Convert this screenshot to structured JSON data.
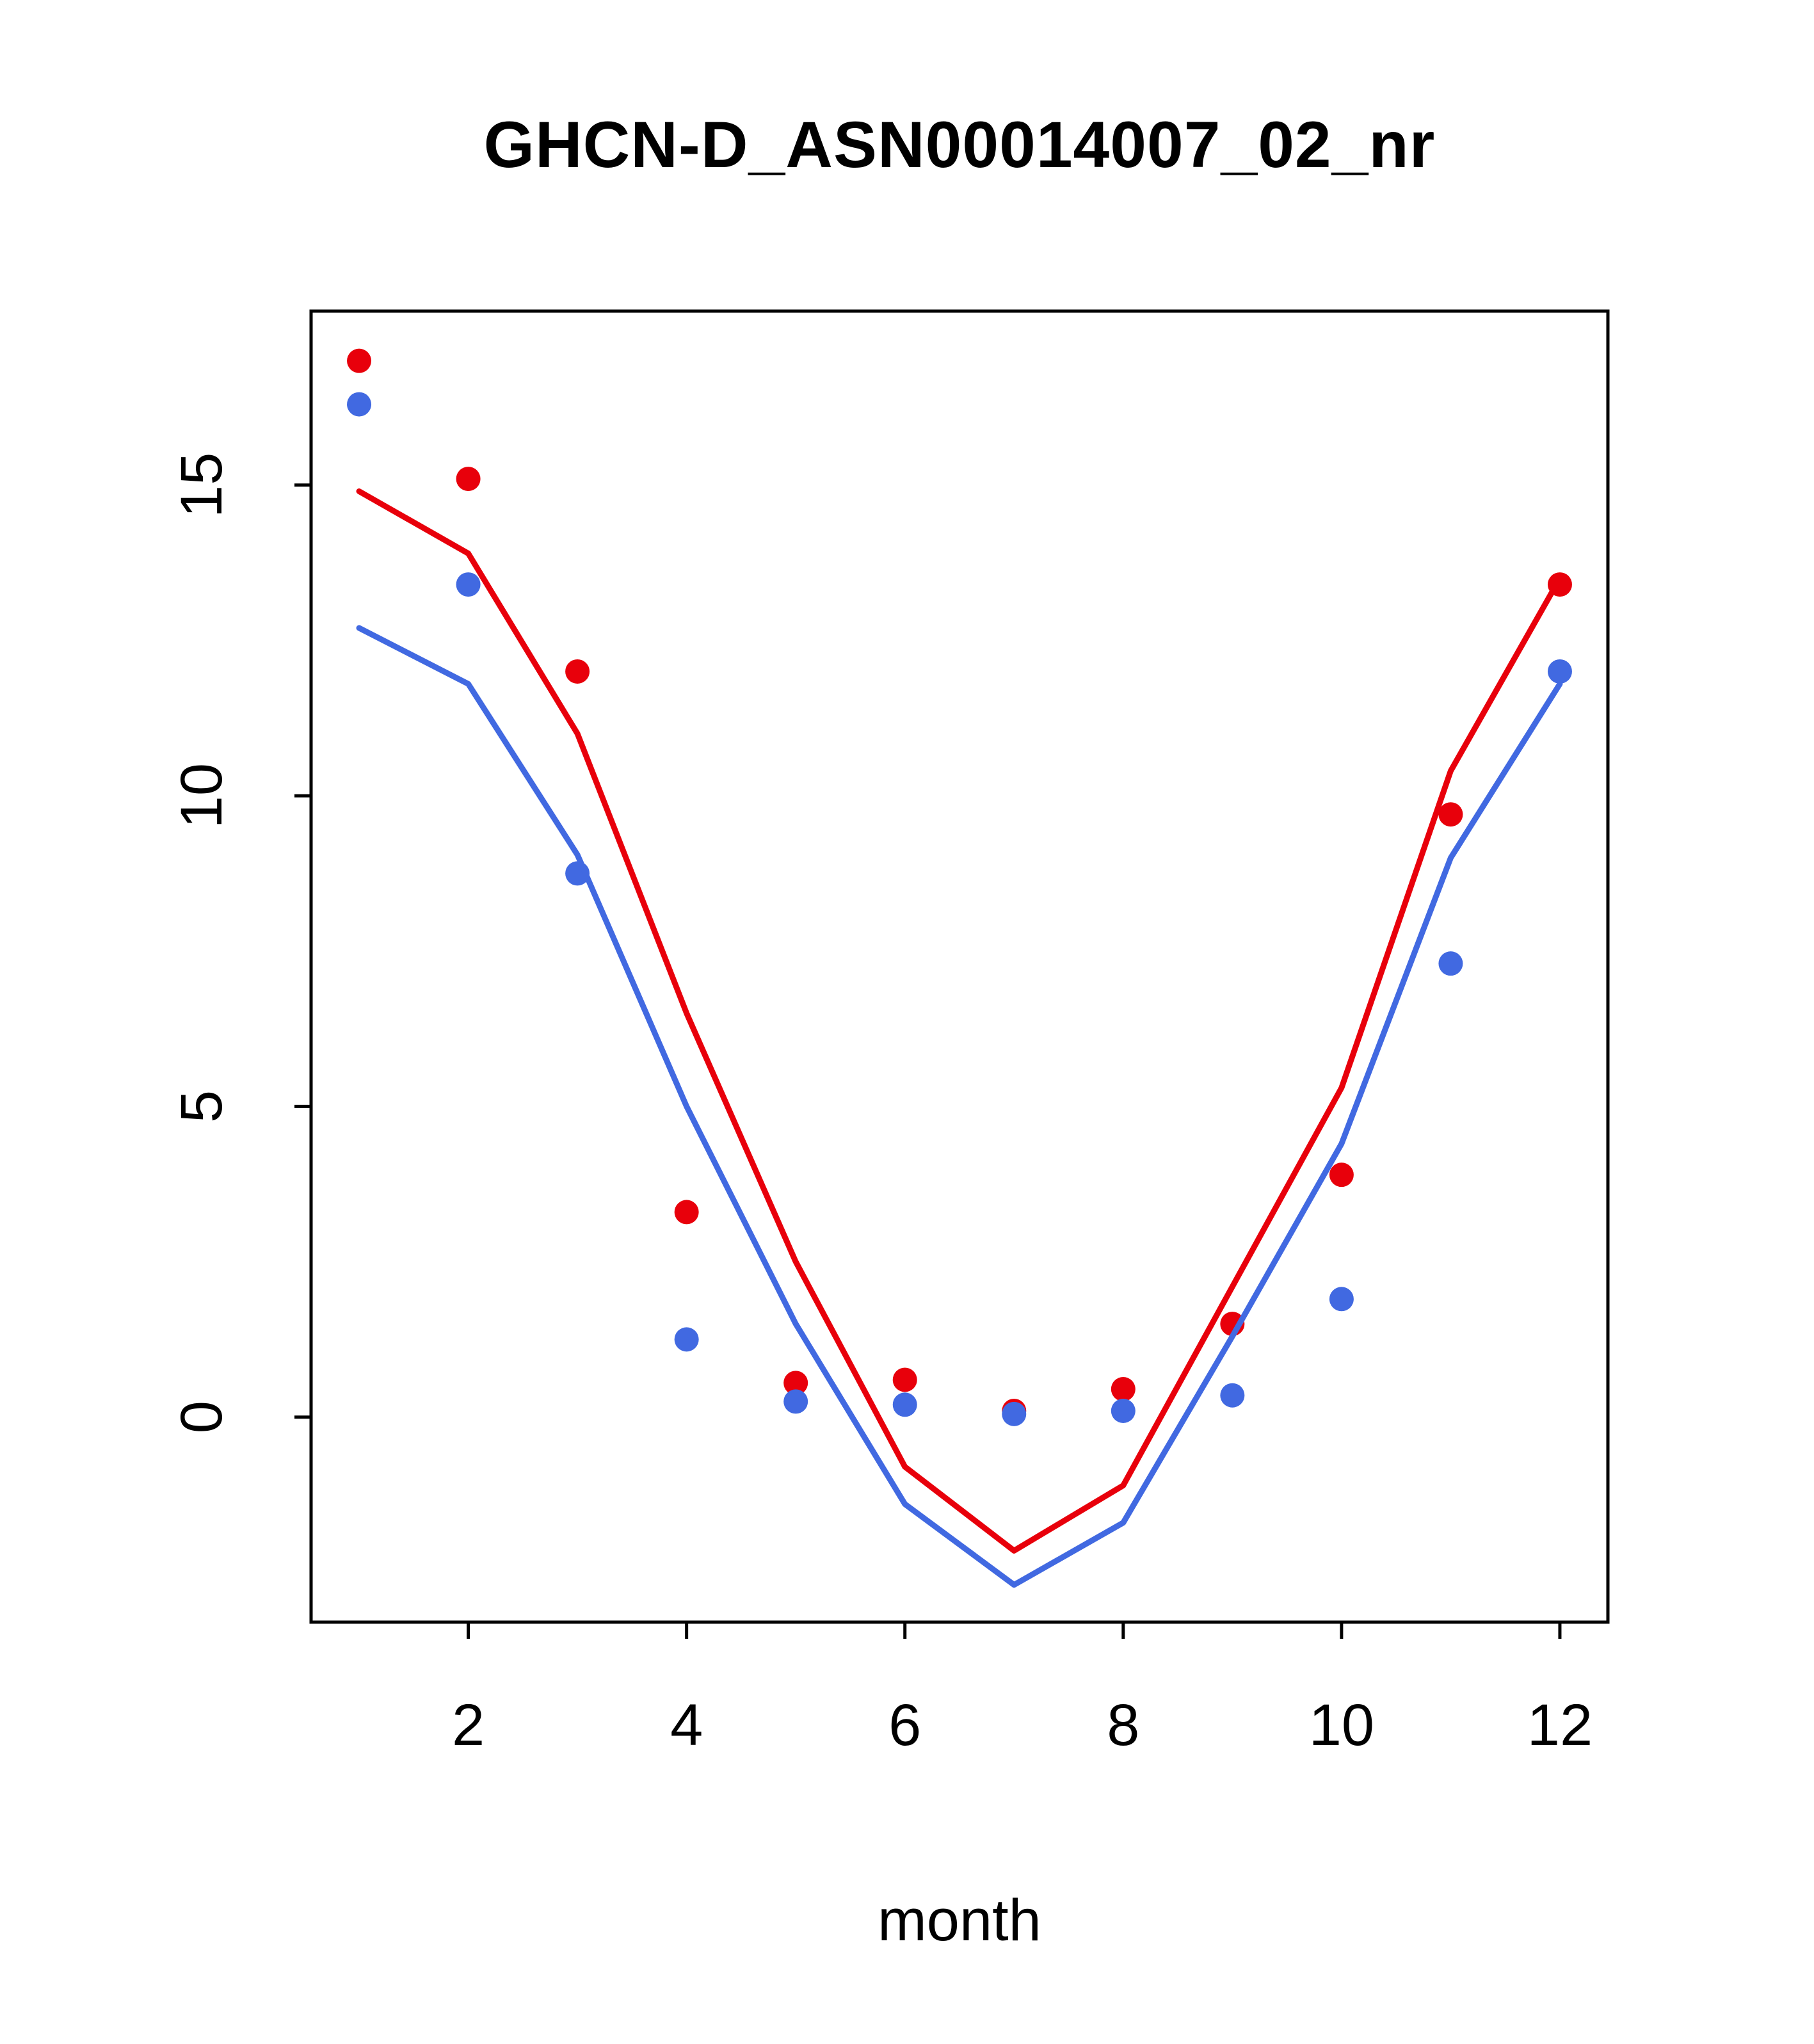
{
  "page": {
    "background": "#ffffff",
    "foreground": "#000000"
  },
  "chart_data": {
    "type": "line",
    "title": "GHCN-D_ASN00014007_02_nr",
    "xlabel": "month",
    "ylabel": "",
    "grid": false,
    "legend": "none",
    "x": [
      1,
      2,
      3,
      4,
      5,
      6,
      7,
      8,
      9,
      10,
      11,
      12
    ],
    "xlim": [
      0.56,
      12.44
    ],
    "ylim": [
      -3.3,
      17.8
    ],
    "xticks": [
      2,
      4,
      6,
      8,
      10,
      12
    ],
    "yticks": [
      0,
      5,
      10,
      15
    ],
    "colors": {
      "red": "#e8000b",
      "blue": "#4169e1"
    },
    "series": [
      {
        "name": "red-points",
        "type": "points",
        "color": "#e8000b",
        "values": [
          17.0,
          15.1,
          12.0,
          3.3,
          0.55,
          0.6,
          0.1,
          0.45,
          1.5,
          3.9,
          9.7,
          13.4
        ]
      },
      {
        "name": "blue-points",
        "type": "points",
        "color": "#4169e1",
        "values": [
          16.3,
          13.4,
          8.75,
          1.25,
          0.25,
          0.2,
          0.05,
          0.1,
          0.35,
          1.9,
          7.3,
          12.0
        ]
      },
      {
        "name": "red-line",
        "type": "line",
        "color": "#e8000b",
        "values": [
          14.9,
          13.9,
          11.0,
          6.5,
          2.5,
          -0.8,
          -2.15,
          -1.1,
          2.1,
          5.3,
          10.4,
          13.5
        ]
      },
      {
        "name": "blue-line",
        "type": "line",
        "color": "#4169e1",
        "values": [
          12.7,
          11.8,
          9.05,
          5.0,
          1.5,
          -1.4,
          -2.7,
          -1.7,
          1.3,
          4.4,
          9.0,
          11.8
        ]
      }
    ]
  }
}
